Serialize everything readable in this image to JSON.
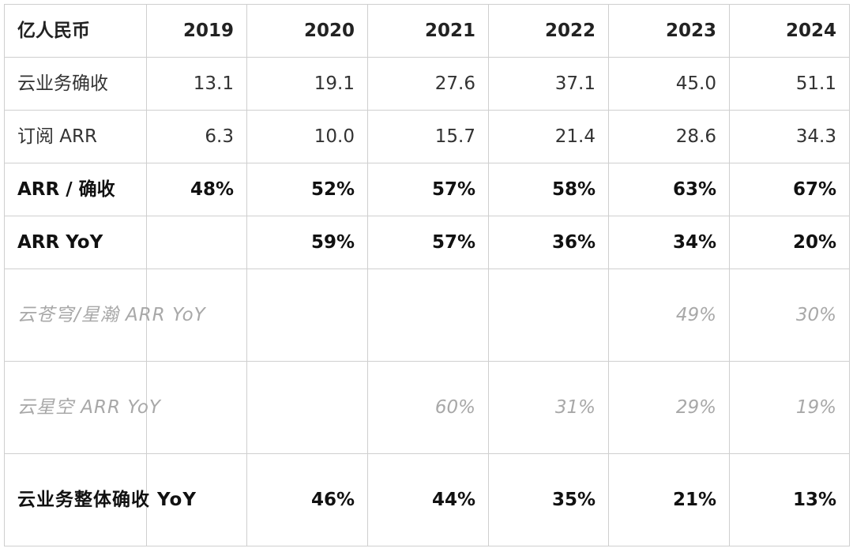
{
  "table": {
    "header": [
      "亿人民币",
      "2019",
      "2020",
      "2021",
      "2022",
      "2023",
      "2024"
    ],
    "rows": [
      {
        "style": "normal",
        "cells": [
          "云业务确收",
          "13.1",
          "19.1",
          "27.6",
          "37.1",
          "45.0",
          "51.1"
        ]
      },
      {
        "style": "normal",
        "cells": [
          "订阅 ARR",
          "6.3",
          "10.0",
          "15.7",
          "21.4",
          "28.6",
          "34.3"
        ]
      },
      {
        "style": "bold",
        "cells": [
          "ARR /  确收",
          "48%",
          "52%",
          "57%",
          "58%",
          "63%",
          "67%"
        ]
      },
      {
        "style": "bold",
        "cells": [
          "ARR YoY",
          "",
          "59%",
          "57%",
          "36%",
          "34%",
          "20%"
        ]
      },
      {
        "style": "gray",
        "cells": [
          "云苍穹/星瀚 ARR YoY",
          "",
          "",
          "",
          "",
          "49%",
          "30%"
        ]
      },
      {
        "style": "gray",
        "cells": [
          "云星空 ARR YoY",
          "",
          "",
          "60%",
          "31%",
          "29%",
          "19%"
        ]
      },
      {
        "style": "bold",
        "cells": [
          "云业务整体确收 YoY",
          "",
          "46%",
          "44%",
          "35%",
          "21%",
          "13%"
        ]
      }
    ]
  }
}
